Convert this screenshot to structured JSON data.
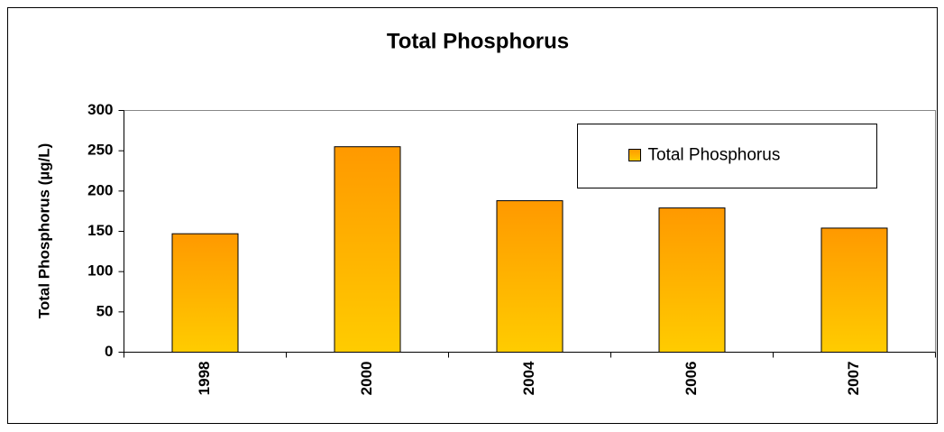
{
  "chart_data": {
    "type": "bar",
    "title": "Total Phosphorus",
    "y_label": "Total Phosphorus (µg/L)",
    "categories": [
      "1998",
      "2000",
      "2004",
      "2006",
      "2007"
    ],
    "series": [
      {
        "name": "Total Phosphorus",
        "color": [
          "#ff9900",
          "#ffcc00"
        ],
        "values": [
          147,
          255,
          188,
          179,
          154
        ]
      }
    ],
    "ylim": [
      0,
      300
    ],
    "yticks": [
      0,
      50,
      100,
      150,
      200,
      250,
      300
    ],
    "grid": false,
    "legend": "upper right"
  }
}
